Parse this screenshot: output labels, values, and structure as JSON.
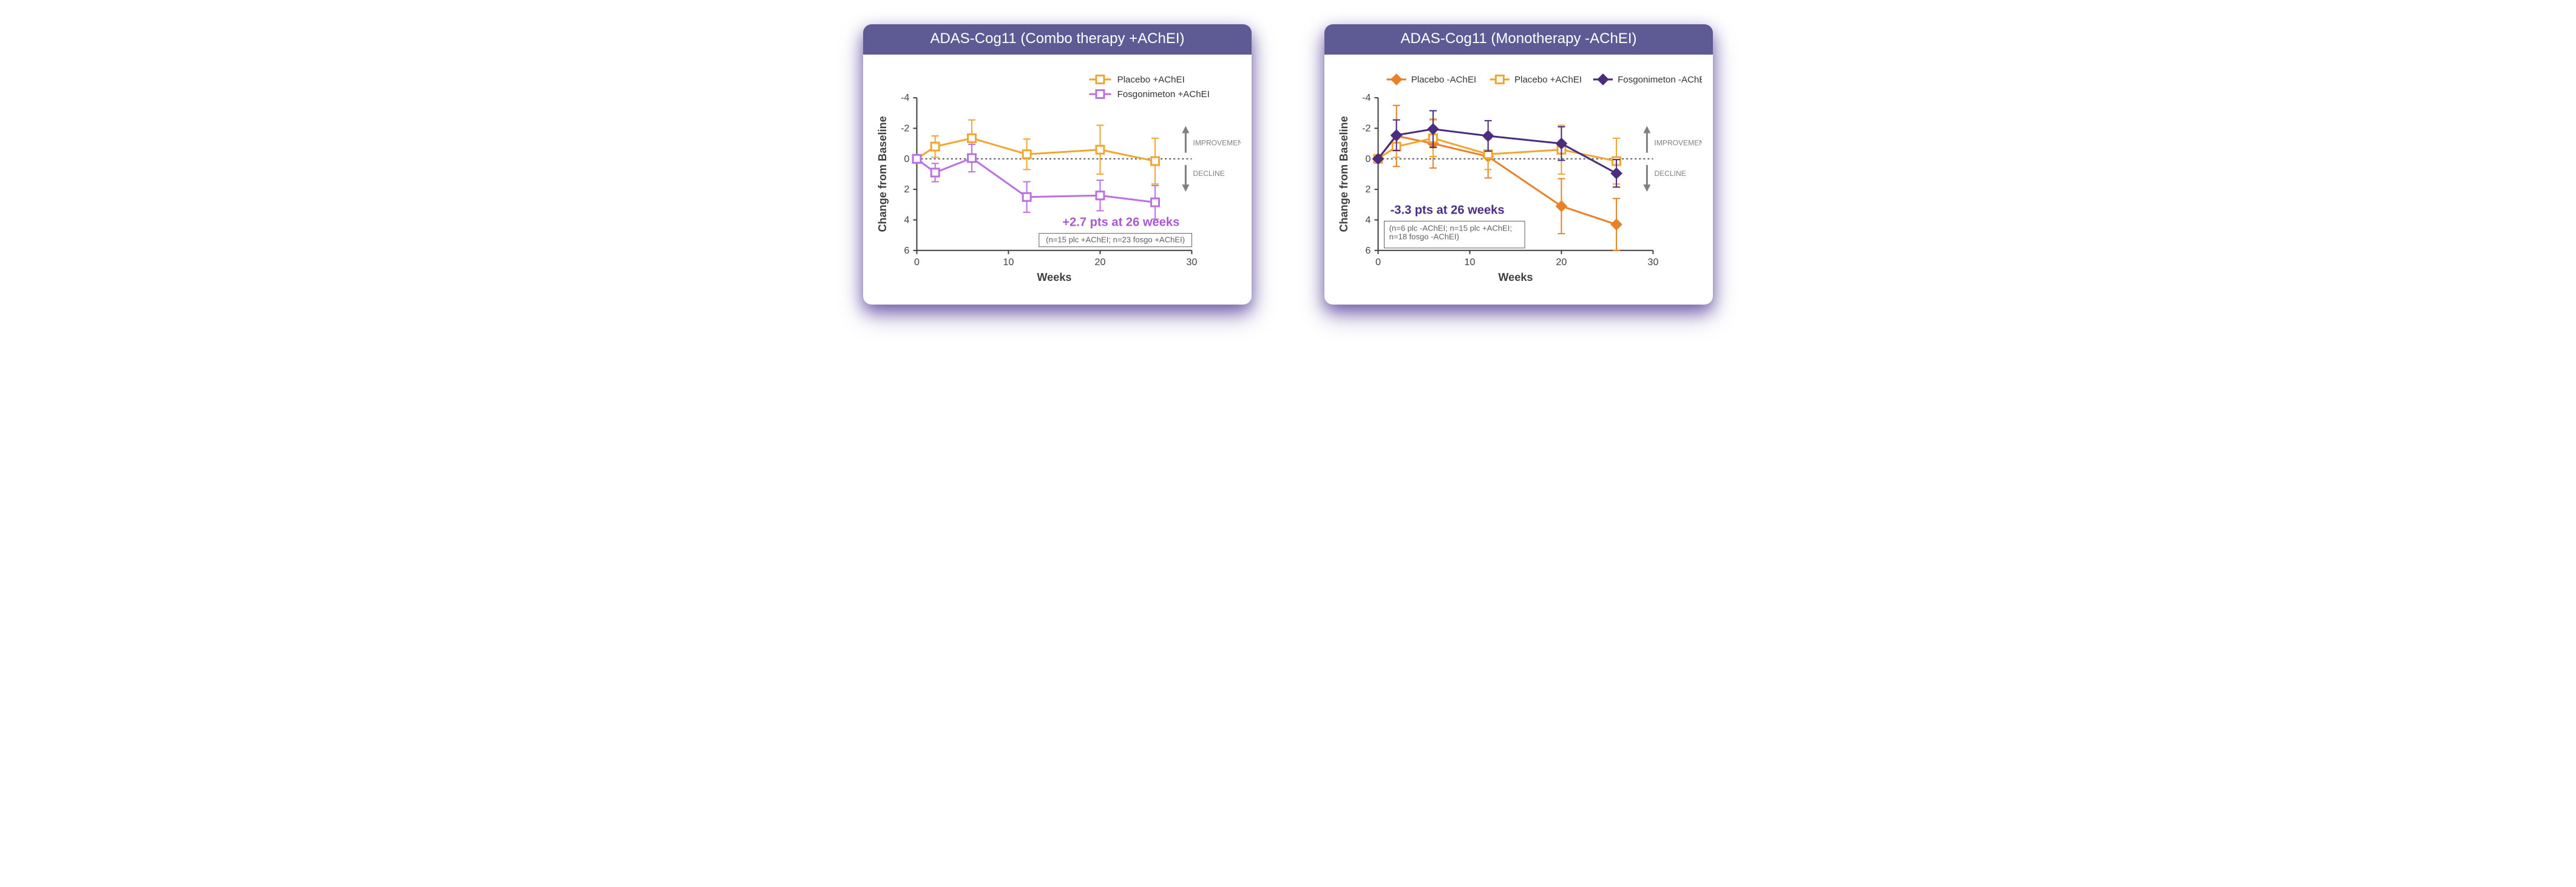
{
  "panels": [
    {
      "title": "ADAS-Cog11 (Combo therapy +AChEI)",
      "xlabel": "Weeks",
      "ylabel": "Change from Baseline",
      "xlim": [
        0,
        30
      ],
      "xtick_step": 10,
      "ylim": [
        -4,
        6
      ],
      "ytick_step": 2,
      "y_reversed": true,
      "y_base": 0,
      "axis_color": "#404040",
      "grid_color": "#888888",
      "label_fontsize": 18,
      "tick_fontsize": 16,
      "improve_text": "IMPROVEMENT",
      "decline_text": "DECLINE",
      "annotation": {
        "text": "+2.7 pts at 26 weeks",
        "color": "#a858d4",
        "fontsize": 20,
        "bold": true
      },
      "nbox": {
        "text": "(n=15 plc +AChEI; n=23 fosgo +AChEI)",
        "fontsize": 13
      },
      "legend_pos": "topright",
      "legend_fontsize": 15,
      "series": [
        {
          "name": "Placebo +AChEI",
          "color": "#f2a531",
          "marker": "square-open",
          "fill": "#ffffff",
          "x": [
            0,
            2,
            6,
            12,
            20,
            26
          ],
          "y": [
            0,
            -0.8,
            -1.35,
            -0.3,
            -0.6,
            0.15
          ],
          "err": [
            0,
            0.7,
            1.2,
            1.0,
            1.6,
            1.5
          ]
        },
        {
          "name": "Fosgonimeton +AChEI",
          "color": "#b972e0",
          "marker": "square-open",
          "fill": "#ffffff",
          "x": [
            0,
            2,
            6,
            12,
            20,
            26
          ],
          "y": [
            0,
            0.9,
            -0.05,
            2.5,
            2.4,
            2.85
          ],
          "err": [
            0,
            0.6,
            0.9,
            1.0,
            1.0,
            1.1
          ]
        }
      ]
    },
    {
      "title": "ADAS-Cog11 (Monotherapy -AChEI)",
      "xlabel": "Weeks",
      "ylabel": "Change from Baseline",
      "xlim": [
        0,
        30
      ],
      "xtick_step": 10,
      "ylim": [
        -4,
        6
      ],
      "ytick_step": 2,
      "y_reversed": true,
      "y_base": 0,
      "axis_color": "#404040",
      "grid_color": "#888888",
      "label_fontsize": 18,
      "tick_fontsize": 16,
      "improve_text": "IMPROVEMENT",
      "decline_text": "DECLINE",
      "annotation": {
        "text": "-3.3 pts at 26 weeks",
        "color": "#4a2d7f",
        "fontsize": 20,
        "bold": true
      },
      "nbox": {
        "text": "(n=6 plc -AChEI; n=15 plc +AChEI;\nn=18 fosgo -AChEI)",
        "fontsize": 13
      },
      "legend_pos": "top",
      "legend_fontsize": 15,
      "series": [
        {
          "name": "Placebo -AChEI",
          "color": "#e88128",
          "marker": "diamond-filled",
          "fill": "#e88128",
          "x": [
            0,
            2,
            6,
            12,
            20,
            26
          ],
          "y": [
            0,
            -1.5,
            -1.0,
            -0.15,
            3.1,
            4.3
          ],
          "err": [
            0,
            2.0,
            1.6,
            1.4,
            1.8,
            1.7
          ]
        },
        {
          "name": "Placebo +AChEI",
          "color": "#f2a531",
          "marker": "square-open",
          "fill": "#ffffff",
          "x": [
            0,
            2,
            6,
            12,
            20,
            26
          ],
          "y": [
            0,
            -0.8,
            -1.35,
            -0.3,
            -0.6,
            0.15
          ],
          "err": [
            0,
            0.7,
            1.2,
            1.0,
            1.6,
            1.5
          ]
        },
        {
          "name": "Fosgonimeton -AChEI",
          "color": "#4a2d7f",
          "marker": "diamond-filled",
          "fill": "#4a2d7f",
          "x": [
            0,
            2,
            6,
            12,
            20,
            26
          ],
          "y": [
            0,
            -1.55,
            -1.95,
            -1.5,
            -1.0,
            0.95
          ],
          "err": [
            0,
            1.0,
            1.2,
            1.0,
            1.1,
            0.9
          ]
        }
      ]
    }
  ],
  "marker_size": 9,
  "line_width": 3,
  "err_cap": 6
}
